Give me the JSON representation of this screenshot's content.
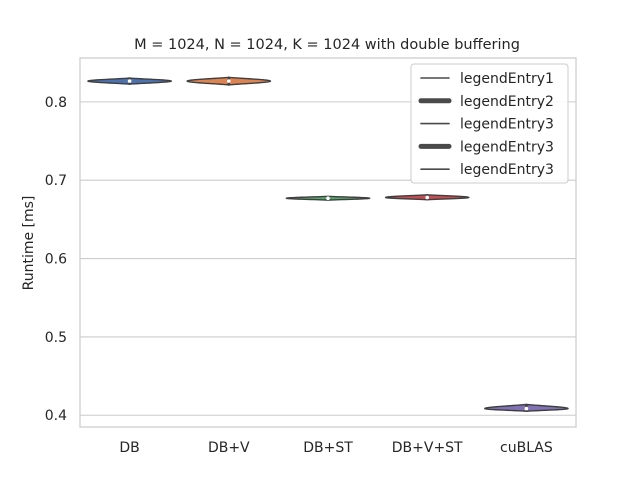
{
  "chart_data": {
    "type": "violin",
    "title": "M = 1024, N = 1024, K = 1024 with double buffering",
    "xlabel": "",
    "ylabel": "Runtime [ms]",
    "ylim": [
      0.385,
      0.856
    ],
    "yticks": [
      "0.4",
      "0.5",
      "0.6",
      "0.7",
      "0.8"
    ],
    "grid": true,
    "legend_position": "top-right",
    "categories": [
      "DB",
      "DB+V",
      "DB+ST",
      "DB+V+ST",
      "cuBLAS"
    ],
    "series": [
      {
        "category": "DB",
        "median": 0.8265,
        "min": 0.8225,
        "max": 0.8305,
        "color": "#4c72b0"
      },
      {
        "category": "DB+V",
        "median": 0.8265,
        "min": 0.8215,
        "max": 0.8315,
        "color": "#dd8452"
      },
      {
        "category": "DB+ST",
        "median": 0.677,
        "min": 0.6745,
        "max": 0.6795,
        "color": "#55a868"
      },
      {
        "category": "DB+V+ST",
        "median": 0.678,
        "min": 0.675,
        "max": 0.6815,
        "color": "#c44e52"
      },
      {
        "category": "cuBLAS",
        "median": 0.4085,
        "min": 0.405,
        "max": 0.414,
        "color": "#8172b3"
      }
    ],
    "legend": [
      {
        "label": "legendEntry1",
        "style": "thin"
      },
      {
        "label": "legendEntry2",
        "style": "thick"
      },
      {
        "label": "legendEntry3",
        "style": "thin"
      },
      {
        "label": "legendEntry3",
        "style": "thick"
      },
      {
        "label": "legendEntry3",
        "style": "thin"
      }
    ]
  }
}
